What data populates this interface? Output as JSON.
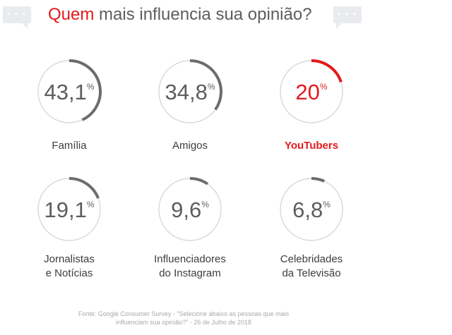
{
  "header": {
    "title_accent": "Quem",
    "title_rest": " mais influencia sua opinião?",
    "bubble_dots": "• • •"
  },
  "colors": {
    "accent": "#e31a1c",
    "default_arc": "#6b6c6e",
    "track": "#d8d8d8",
    "text": "#5b5d60"
  },
  "chart_data": {
    "type": "donut-grid",
    "title": "Quem mais influencia sua opinião?",
    "unit": "%",
    "items": [
      {
        "value_text": "43,1",
        "value": 43.1,
        "label_lines": [
          "Família"
        ],
        "highlight": false
      },
      {
        "value_text": "34,8",
        "value": 34.8,
        "label_lines": [
          "Amigos"
        ],
        "highlight": false
      },
      {
        "value_text": "20",
        "value": 20,
        "label_lines": [
          "YouTubers"
        ],
        "highlight": true
      },
      {
        "value_text": "19,1",
        "value": 19.1,
        "label_lines": [
          "Jornalistas",
          "e Notícias"
        ],
        "highlight": false
      },
      {
        "value_text": "9,6",
        "value": 9.6,
        "label_lines": [
          "Influenciadores",
          "do Instagram"
        ],
        "highlight": false
      },
      {
        "value_text": "6,8",
        "value": 6.8,
        "label_lines": [
          "Celebridades",
          "da Televisão"
        ],
        "highlight": false
      }
    ]
  },
  "footnote": {
    "lines": [
      "Fonte: Google Consumer Survey - \"Selecione abaixo as pessoas que mais",
      "influenciam sua opinião?\" - 26 de Julho de 2018"
    ]
  }
}
